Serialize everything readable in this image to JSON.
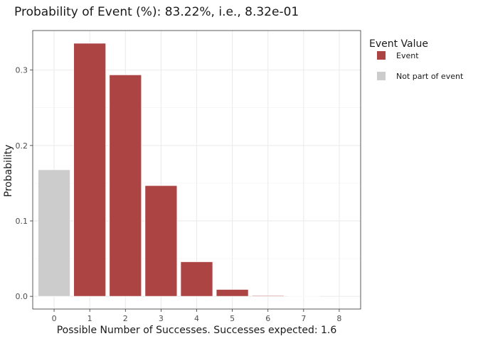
{
  "chart_data": {
    "type": "bar",
    "title": "Probability of Event (%): 83.22%, i.e., 8.32e-01",
    "xlabel": "Possible Number of Successes. Successes expected: 1.6",
    "ylabel": "Probability",
    "categories": [
      "0",
      "1",
      "2",
      "3",
      "4",
      "5",
      "6",
      "7",
      "8"
    ],
    "values": [
      0.1679,
      0.3356,
      0.2937,
      0.1469,
      0.0459,
      0.0092,
      0.0011,
      0.0001,
      0.0
    ],
    "groups": [
      "Not part of event",
      "Event",
      "Event",
      "Event",
      "Event",
      "Event",
      "Event",
      "Event",
      "Event"
    ],
    "ylim": [
      -0.0168,
      0.3524
    ],
    "yticks": [
      0.0,
      0.1,
      0.2,
      0.3
    ],
    "ytick_labels": [
      "0.0",
      "0.1",
      "0.2",
      "0.3"
    ],
    "grid": true,
    "legend": {
      "title": "Event Value",
      "position": "right",
      "entries": [
        {
          "label": "Event",
          "color": "#ad4444"
        },
        {
          "label": "Not part of event",
          "color": "#cccccc"
        }
      ]
    },
    "colors": {
      "Event": "#ad4444",
      "Not part of event": "#cccccc"
    }
  }
}
